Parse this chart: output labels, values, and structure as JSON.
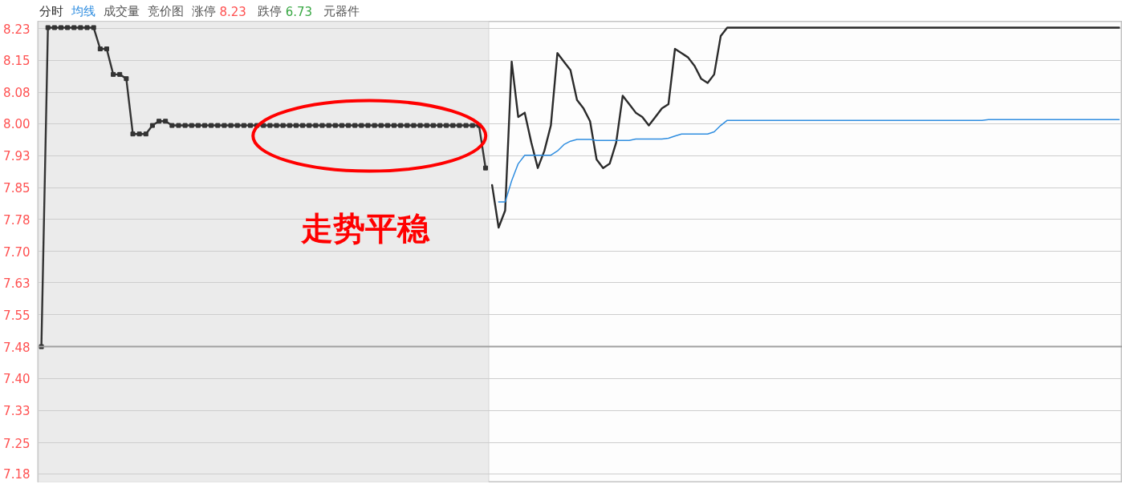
{
  "chart_data": {
    "type": "line",
    "categories": [
      null,
      null,
      null,
      null,
      null,
      null,
      null,
      null,
      null,
      null,
      null,
      null,
      null,
      null,
      null,
      null,
      null,
      null,
      null,
      null,
      null,
      null,
      null,
      null,
      null,
      null,
      null,
      null,
      null,
      null,
      null,
      null,
      null,
      null,
      null,
      null,
      null,
      null,
      null,
      null,
      null,
      null,
      null,
      null,
      null,
      null,
      null,
      null,
      null,
      null,
      null,
      null,
      null,
      null,
      null,
      null,
      null,
      null,
      null,
      null,
      null,
      null,
      null,
      null,
      null,
      null,
      null,
      null,
      null,
      null,
      null,
      null,
      null,
      null,
      null,
      null,
      null,
      null,
      null,
      null,
      null,
      null,
      null,
      null,
      null,
      null,
      null,
      null,
      null,
      null,
      null,
      null,
      null,
      null,
      null,
      null,
      null,
      null,
      null,
      null,
      null,
      null,
      null,
      null,
      null,
      null,
      null,
      null,
      null,
      null,
      null,
      null,
      null,
      null,
      null,
      null,
      null,
      null,
      null,
      null,
      null,
      null,
      null,
      null,
      null,
      null,
      null,
      null,
      null,
      null,
      null,
      null,
      null,
      null,
      null,
      null,
      null,
      null,
      null,
      null,
      null,
      null,
      null,
      null,
      null,
      null,
      null,
      null,
      null,
      null,
      null,
      null,
      null,
      null,
      null,
      null,
      null,
      null,
      null,
      null,
      null,
      null,
      null,
      null,
      null,
      null
    ],
    "series": [
      {
        "color": "#333333",
        "marker": "square",
        "values": [
          7.48,
          8.23,
          8.23,
          8.23,
          8.23,
          8.23,
          8.23,
          8.23,
          8.23,
          8.18,
          8.18,
          8.12,
          8.12,
          8.11,
          7.98,
          7.98,
          7.98,
          8.0,
          8.01,
          8.01,
          8.0,
          8.0,
          8.0,
          8.0,
          8.0,
          8.0,
          8.0,
          8.0,
          8.0,
          8.0,
          8.0,
          8.0,
          8.0,
          8.0,
          8.0,
          8.0,
          8.0,
          8.0,
          8.0,
          8.0,
          8.0,
          8.0,
          8.0,
          8.0,
          8.0,
          8.0,
          8.0,
          8.0,
          8.0,
          8.0,
          8.0,
          8.0,
          8.0,
          8.0,
          8.0,
          8.0,
          8.0,
          8.0,
          8.0,
          8.0,
          8.0,
          8.0,
          8.0,
          8.0,
          8.0,
          8.0,
          8.0,
          8.0,
          7.9,
          null,
          null,
          null,
          null,
          null,
          null,
          null,
          null,
          null,
          null,
          null,
          null,
          null,
          null,
          null,
          null,
          null,
          null,
          null,
          null,
          null,
          null,
          null,
          null,
          null,
          null,
          null,
          null,
          null,
          null,
          null,
          null,
          null,
          null,
          null,
          null,
          null,
          null,
          null,
          null,
          null,
          null,
          null,
          null,
          null,
          null,
          null,
          null,
          null,
          null,
          null,
          null,
          null,
          null,
          null,
          null,
          null,
          null,
          null,
          null,
          null,
          null,
          null,
          null,
          null,
          null,
          null,
          null,
          null,
          null,
          null,
          null,
          null,
          null,
          null,
          null,
          null,
          null,
          null,
          null,
          null,
          null,
          null,
          null,
          null,
          null,
          null,
          null,
          null,
          null,
          null,
          null,
          null,
          null,
          null,
          null,
          null
        ]
      },
      {
        "name": "分时",
        "color": "#2b2b2b",
        "values": [
          null,
          null,
          null,
          null,
          null,
          null,
          null,
          null,
          null,
          null,
          null,
          null,
          null,
          null,
          null,
          null,
          null,
          null,
          null,
          null,
          null,
          null,
          null,
          null,
          null,
          null,
          null,
          null,
          null,
          null,
          null,
          null,
          null,
          null,
          null,
          null,
          null,
          null,
          null,
          null,
          null,
          null,
          null,
          null,
          null,
          null,
          null,
          null,
          null,
          null,
          null,
          null,
          null,
          null,
          null,
          null,
          null,
          null,
          null,
          null,
          null,
          null,
          null,
          null,
          null,
          null,
          null,
          null,
          null,
          7.86,
          7.76,
          7.8,
          8.15,
          8.02,
          8.03,
          7.96,
          7.9,
          7.94,
          8.0,
          8.17,
          8.15,
          8.13,
          8.06,
          8.04,
          8.01,
          7.92,
          7.9,
          7.91,
          7.96,
          8.07,
          8.05,
          8.03,
          8.02,
          8.0,
          8.02,
          8.04,
          8.05,
          8.18,
          8.17,
          8.16,
          8.14,
          8.11,
          8.1,
          8.12,
          8.21,
          8.23,
          8.23,
          8.23,
          8.23,
          8.23,
          8.23,
          8.23,
          8.23,
          8.23,
          8.23,
          8.23,
          8.23,
          8.23,
          8.23,
          8.23,
          8.23,
          8.23,
          8.23,
          8.23,
          8.23,
          8.23,
          8.23,
          8.23,
          8.23,
          8.23,
          8.23,
          8.23,
          8.23,
          8.23,
          8.23,
          8.23,
          8.23,
          8.23,
          8.23,
          8.23,
          8.23,
          8.23,
          8.23,
          8.23,
          8.23,
          8.23,
          8.23,
          8.23,
          8.23,
          8.23,
          8.23,
          8.23,
          8.23,
          8.23,
          8.23,
          8.23,
          8.23,
          8.23,
          8.23,
          8.23,
          8.23,
          8.23,
          8.23,
          8.23,
          8.23,
          8.23
        ]
      },
      {
        "name": "均线",
        "color": "#2e8de0",
        "values": [
          null,
          null,
          null,
          null,
          null,
          null,
          null,
          null,
          null,
          null,
          null,
          null,
          null,
          null,
          null,
          null,
          null,
          null,
          null,
          null,
          null,
          null,
          null,
          null,
          null,
          null,
          null,
          null,
          null,
          null,
          null,
          null,
          null,
          null,
          null,
          null,
          null,
          null,
          null,
          null,
          null,
          null,
          null,
          null,
          null,
          null,
          null,
          null,
          null,
          null,
          null,
          null,
          null,
          null,
          null,
          null,
          null,
          null,
          null,
          null,
          null,
          null,
          null,
          null,
          null,
          null,
          null,
          null,
          null,
          null,
          7.82,
          7.82,
          7.87,
          7.91,
          7.93,
          7.93,
          7.93,
          7.93,
          7.93,
          7.94,
          7.955,
          7.963,
          7.967,
          7.967,
          7.967,
          7.965,
          7.965,
          7.965,
          7.965,
          7.965,
          7.965,
          7.968,
          7.968,
          7.968,
          7.968,
          7.968,
          7.97,
          7.975,
          7.98,
          7.98,
          7.98,
          7.98,
          7.98,
          7.985,
          8.0,
          8.012,
          8.012,
          8.012,
          8.012,
          8.012,
          8.012,
          8.012,
          8.012,
          8.012,
          8.012,
          8.012,
          8.012,
          8.012,
          8.012,
          8.012,
          8.012,
          8.012,
          8.012,
          8.012,
          8.012,
          8.012,
          8.012,
          8.012,
          8.012,
          8.012,
          8.012,
          8.012,
          8.012,
          8.012,
          8.012,
          8.012,
          8.012,
          8.012,
          8.012,
          8.012,
          8.012,
          8.012,
          8.012,
          8.012,
          8.012,
          8.014,
          8.014,
          8.014,
          8.014,
          8.014,
          8.014,
          8.014,
          8.014,
          8.014,
          8.014,
          8.014,
          8.014,
          8.014,
          8.014,
          8.014,
          8.014,
          8.014,
          8.014,
          8.014,
          8.014,
          8.014
        ]
      }
    ],
    "ylim": [
      7.16,
      8.245
    ],
    "yticks": [
      {
        "value": 8.228,
        "label": "8.23"
      },
      {
        "value": 8.153,
        "label": "8.15"
      },
      {
        "value": 8.078,
        "label": "8.08"
      },
      {
        "value": 8.004,
        "label": "8.00"
      },
      {
        "value": 7.929,
        "label": "7.93"
      },
      {
        "value": 7.854,
        "label": "7.85"
      },
      {
        "value": 7.779,
        "label": "7.78"
      },
      {
        "value": 7.704,
        "label": "7.70"
      },
      {
        "value": 7.63,
        "label": "7.63"
      },
      {
        "value": 7.555,
        "label": "7.55"
      },
      {
        "value": 7.48,
        "label": "7.48"
      },
      {
        "value": 7.405,
        "label": "7.40"
      },
      {
        "value": 7.33,
        "label": "7.33"
      },
      {
        "value": 7.254,
        "label": "7.25"
      },
      {
        "value": 7.181,
        "label": "7.18"
      }
    ],
    "grid": "y",
    "ref_lines": [
      {
        "axis": "y",
        "value": 7.48,
        "color": "#a0a0a0"
      }
    ],
    "annotations": [
      {
        "text": "走势平稳",
        "y": 8.0
      },
      "成交量",
      "竞价图",
      "涨停 8.23",
      "跌停 6.73",
      "元器件"
    ]
  }
}
